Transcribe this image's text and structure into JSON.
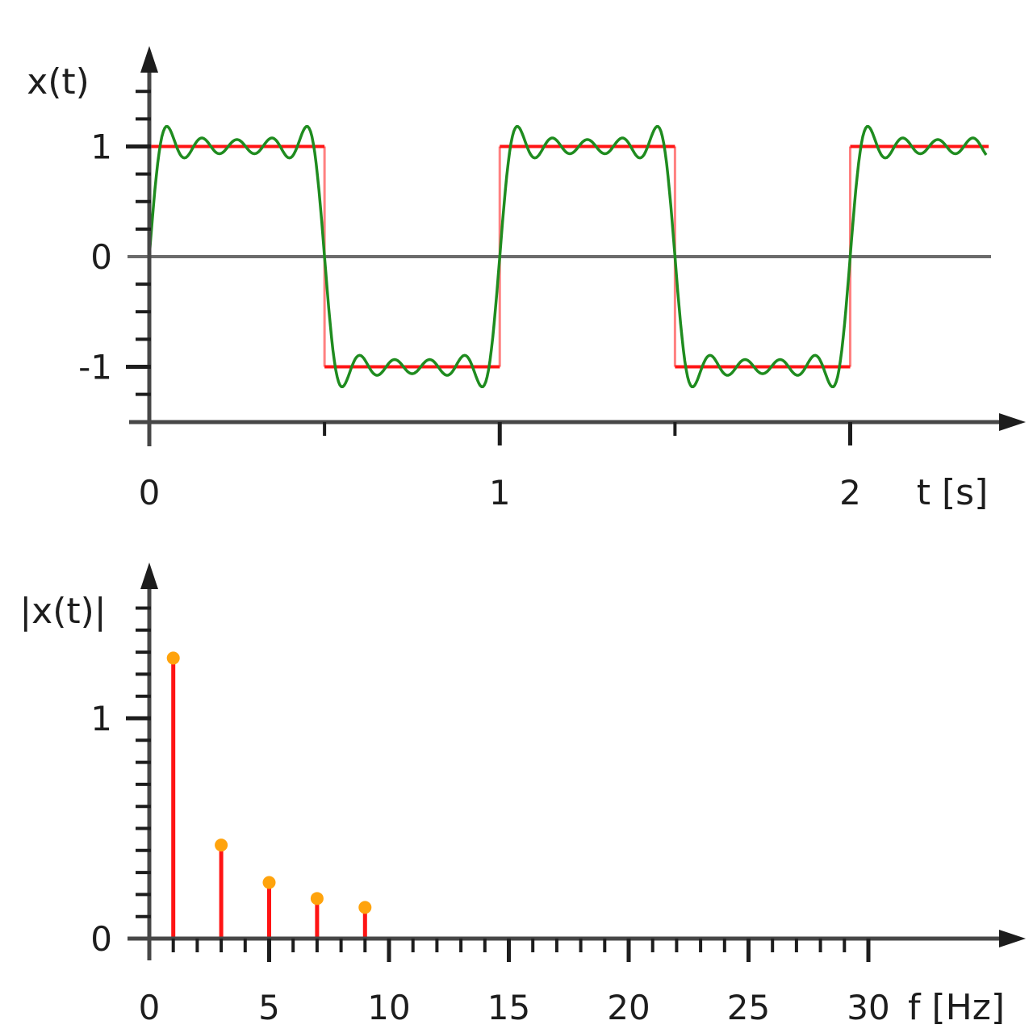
{
  "figure": {
    "description": "Square wave, its Fourier partial sum, and its magnitude line spectrum",
    "background": "#ffffff"
  },
  "colors": {
    "axis": "#474747",
    "tick": "#1d1d1d",
    "text": "#1d1d1d",
    "zero_line": "#6b6b6b",
    "square_wave": "#ff1414",
    "square_wave_edges": "#ff8080",
    "fourier_sum": "#1f8c1f",
    "stem": "#ff1414",
    "stem_dot": "#ffa30c"
  },
  "chart_data": [
    {
      "id": "time_domain",
      "type": "line",
      "ylabel": "x(t)",
      "xlabel": "t [s]",
      "xlim": [
        0,
        2.4
      ],
      "ylim": [
        -1.5,
        1.9
      ],
      "grid": false,
      "x_ticks": [
        {
          "v": 0,
          "label": "0",
          "major": true,
          "tick": false
        },
        {
          "v": 0.5,
          "major": false
        },
        {
          "v": 1,
          "label": "1",
          "major": true
        },
        {
          "v": 1.5,
          "major": false
        },
        {
          "v": 2,
          "label": "2",
          "major": true
        }
      ],
      "y_ticks": [
        {
          "v": 1,
          "label": "1",
          "major": true
        },
        {
          "v": 0,
          "label": "0",
          "major": true,
          "tick": false
        },
        {
          "v": -1,
          "label": "-1",
          "major": true
        },
        {
          "v": 1.5,
          "major": false
        },
        {
          "v": 1.25,
          "major": false
        },
        {
          "v": 0.75,
          "major": false
        },
        {
          "v": 0.5,
          "major": false
        },
        {
          "v": 0.25,
          "major": false
        },
        {
          "v": -0.25,
          "major": false
        },
        {
          "v": -0.5,
          "major": false
        },
        {
          "v": -0.75,
          "major": false
        },
        {
          "v": -1.25,
          "major": false
        }
      ],
      "series": [
        {
          "name": "square wave",
          "kind": "square",
          "amplitude": 1,
          "period": 1,
          "t_start": 0,
          "t_end": 2.395,
          "transitions": [
            0.5,
            1,
            1.5,
            2
          ],
          "levels": [
            1,
            -1
          ]
        },
        {
          "name": "Fourier partial sum (harmonics 1,3,5,7,9)",
          "kind": "fourier_sum",
          "harmonics": [
            1,
            3,
            5,
            7,
            9
          ],
          "coefficient_rule": "4/(pi*k)",
          "t_start": 0,
          "t_end": 2.39,
          "overshoot_peak": 1.18
        }
      ]
    },
    {
      "id": "magnitude_spectrum",
      "type": "stem",
      "ylabel": "|x(t)|",
      "xlabel": "f [Hz]",
      "xlim": [
        0,
        35
      ],
      "ylim": [
        0,
        1.7
      ],
      "x": [
        1,
        3,
        5,
        7,
        9
      ],
      "values": [
        1.2732,
        0.4244,
        0.2546,
        0.1819,
        0.1415
      ],
      "x_ticks_labeled": [
        {
          "v": 0,
          "label": "0",
          "tick": false
        },
        {
          "v": 5,
          "label": "5"
        },
        {
          "v": 10,
          "label": "10"
        },
        {
          "v": 15,
          "label": "15"
        },
        {
          "v": 20,
          "label": "20"
        },
        {
          "v": 25,
          "label": "25"
        },
        {
          "v": 30,
          "label": "30"
        }
      ],
      "x_tick_minor_step": 1,
      "x_tick_minor_max": 30,
      "y_ticks_labeled": [
        {
          "v": 0,
          "label": "0",
          "tick": false
        },
        {
          "v": 1,
          "label": "1"
        }
      ],
      "y_tick_minor_step": 0.1,
      "y_tick_minor_max": 1.5
    }
  ]
}
